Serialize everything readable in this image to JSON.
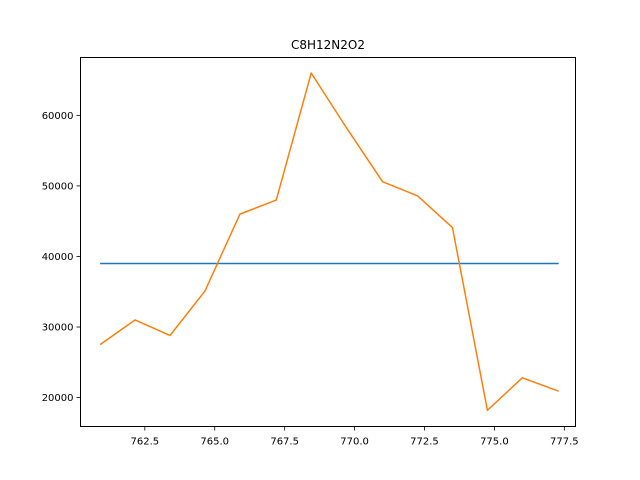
{
  "chart_data": {
    "type": "line",
    "title": "C8H12N2O2",
    "xlabel": "",
    "ylabel": "",
    "xlim": [
      760.2,
      777.9
    ],
    "ylim": [
      15900,
      68200
    ],
    "grid": false,
    "xticks": [
      762.5,
      765.0,
      767.5,
      770.0,
      772.5,
      775.0,
      777.5
    ],
    "xtick_labels": [
      "762.5",
      "765.0",
      "767.5",
      "770.0",
      "772.5",
      "775.0",
      "777.5"
    ],
    "yticks": [
      20000,
      30000,
      40000,
      50000,
      60000
    ],
    "ytick_labels": [
      "20000",
      "30000",
      "40000",
      "50000",
      "60000"
    ],
    "series": [
      {
        "color": "#1f77b4",
        "x": [
          760.9,
          777.3
        ],
        "y": [
          39000,
          39000
        ]
      },
      {
        "color": "#ff7f0e",
        "x": [
          760.9,
          762.15,
          763.4,
          764.65,
          765.9,
          767.2,
          768.45,
          769.7,
          771.0,
          772.25,
          773.5,
          774.75,
          776.0,
          777.3
        ],
        "y": [
          27500,
          31000,
          28800,
          35100,
          46000,
          48000,
          66000,
          58300,
          50600,
          48600,
          44100,
          18200,
          22800,
          20900
        ]
      }
    ]
  }
}
